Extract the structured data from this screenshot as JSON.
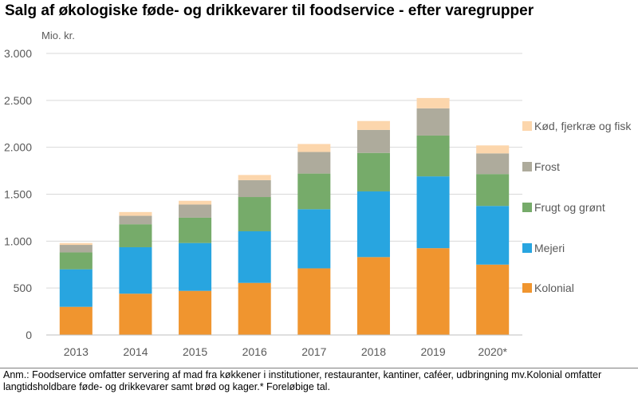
{
  "title": "Salg af økologiske føde- og drikkevarer til foodservice - efter varegrupper",
  "note": "Anm.: Foodservice omfatter servering af mad fra køkkener i institutioner, restauranter, kantiner, caféer, udbringning mv.Kolonial omfatter langtidsholdbare føde- og drikkevarer samt brød og kager.* Foreløbige tal.",
  "colors": {
    "Kolonial": "#f0952f",
    "Mejeri": "#28a5e0",
    "Frugt og grønt": "#76ab6a",
    "Frost": "#aeab9c",
    "Kød, fjerkræ og fisk": "#fcd6ac",
    "grid": "#d9d9d9",
    "axis": "#bfbfbf",
    "text": "#595959"
  },
  "chart_data": {
    "type": "bar",
    "stacked": true,
    "ylabel": "Mio. kr.",
    "ylim": [
      0,
      3000
    ],
    "yticks": [
      0,
      500,
      1000,
      1500,
      2000,
      2500,
      3000
    ],
    "ytick_labels": [
      "0",
      "500",
      "1.000",
      "1.500",
      "2.000",
      "2.500",
      "3.000"
    ],
    "categories": [
      "2013",
      "2014",
      "2015",
      "2016",
      "2017",
      "2018",
      "2019",
      "2020*"
    ],
    "legend_position": "right",
    "grid": true,
    "series": [
      {
        "name": "Kolonial",
        "values": [
          300,
          440,
          470,
          555,
          710,
          830,
          925,
          750
        ]
      },
      {
        "name": "Mejeri",
        "values": [
          400,
          495,
          510,
          550,
          630,
          700,
          765,
          625
        ]
      },
      {
        "name": "Frugt og grønt",
        "values": [
          180,
          245,
          270,
          365,
          380,
          410,
          435,
          340
        ]
      },
      {
        "name": "Frost",
        "values": [
          80,
          90,
          140,
          180,
          230,
          245,
          290,
          220
        ]
      },
      {
        "name": "Kød, fjerkræ og fisk",
        "values": [
          20,
          40,
          40,
          55,
          85,
          95,
          110,
          85
        ]
      }
    ]
  }
}
